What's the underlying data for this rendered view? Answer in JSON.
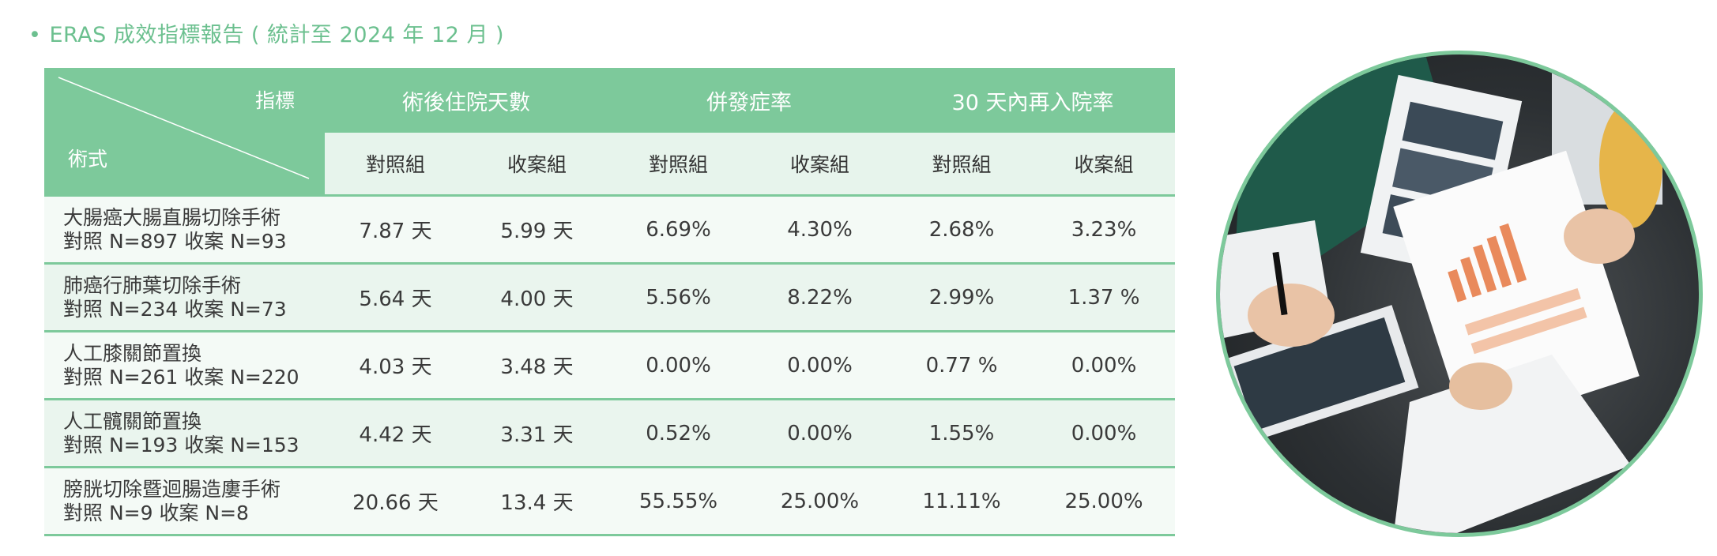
{
  "title": "ERAS 成效指標報告 ( 統計至 2024 年 12 月 )",
  "title_bullet": "•",
  "colors": {
    "accent": "#7dc99b",
    "title": "#6cc08f",
    "subheader": "#e7f4ec"
  },
  "table": {
    "corner_top": "指標",
    "corner_bottom": "術式",
    "groups": [
      "術後住院天數",
      "併發症率",
      "30 天內再入院率"
    ],
    "subheaders": [
      "對照組",
      "收案組",
      "對照組",
      "收案組",
      "對照組",
      "收案組"
    ],
    "rows": [
      {
        "name": "大腸癌大腸直腸切除手術",
        "n": "對照 N=897   收案 N=93",
        "values": [
          "7.87 天",
          "5.99 天",
          "6.69%",
          "4.30%",
          "2.68%",
          "3.23%"
        ]
      },
      {
        "name": "肺癌行肺葉切除手術",
        "n": "對照 N=234   收案 N=73",
        "values": [
          "5.64 天",
          "4.00 天",
          "5.56%",
          "8.22%",
          "2.99%",
          "1.37 %"
        ]
      },
      {
        "name": "人工膝關節置換",
        "n": "對照 N=261   收案 N=220",
        "values": [
          "4.03 天",
          "3.48 天",
          "0.00%",
          "0.00%",
          "0.77 %",
          "0.00%"
        ]
      },
      {
        "name": "人工髖關節置換",
        "n": "對照 N=193   收案 N=153",
        "values": [
          "4.42 天",
          "3.31 天",
          "0.52%",
          "0.00%",
          "1.55%",
          "0.00%"
        ]
      },
      {
        "name": "膀胱切除暨迴腸造廔手術",
        "n": "對照 N=9   收案 N=8",
        "values": [
          "20.66 天",
          "13.4 天",
          "55.55%",
          "25.00%",
          "11.11%",
          "25.00%"
        ]
      }
    ]
  }
}
